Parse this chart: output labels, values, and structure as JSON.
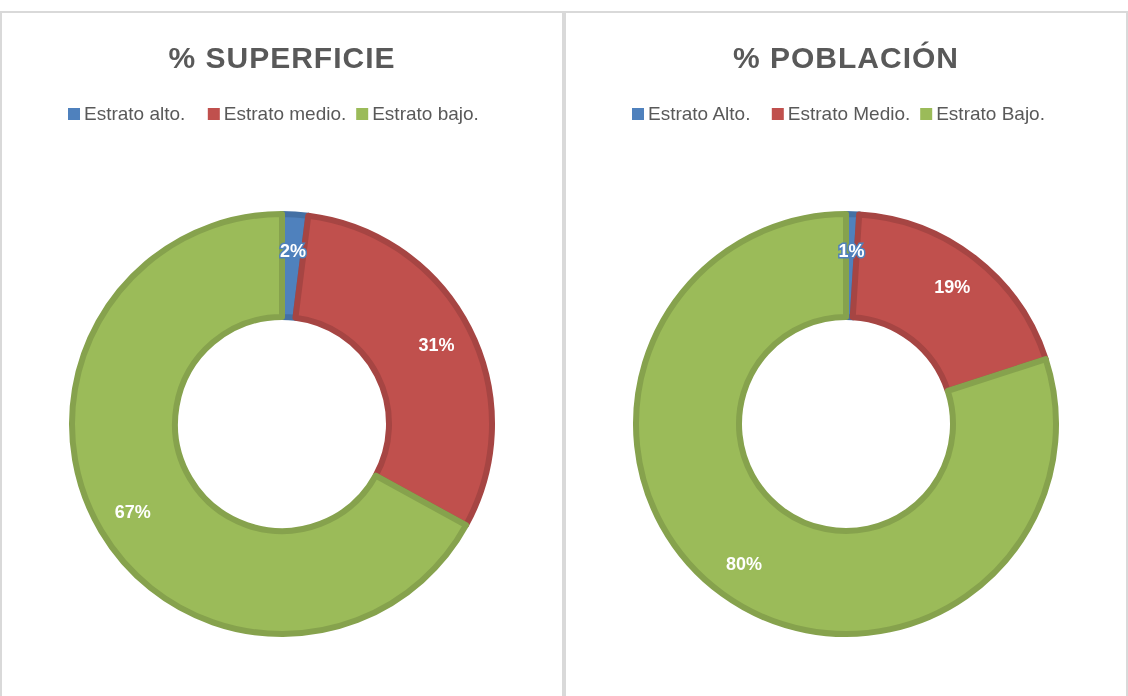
{
  "chart_data": [
    {
      "type": "donut",
      "title": "% SUPERFICIE",
      "categories": [
        "Estrato alto.",
        "Estrato medio.",
        "Estrato bajo."
      ],
      "values": [
        2,
        31,
        67
      ],
      "value_labels": [
        "2%",
        "31%",
        "67%"
      ],
      "colors": [
        "#4f81bd",
        "#c0504d",
        "#9bbb59"
      ],
      "legend": "top"
    },
    {
      "type": "donut",
      "title": "% POBLACIÓN",
      "categories": [
        "Estrato Alto.",
        "Estrato Medio.",
        "Estrato Bajo."
      ],
      "values": [
        1,
        19,
        80
      ],
      "value_labels": [
        "1%",
        "19%",
        "80%"
      ],
      "colors": [
        "#4f81bd",
        "#c0504d",
        "#9bbb59"
      ],
      "legend": "top"
    }
  ]
}
